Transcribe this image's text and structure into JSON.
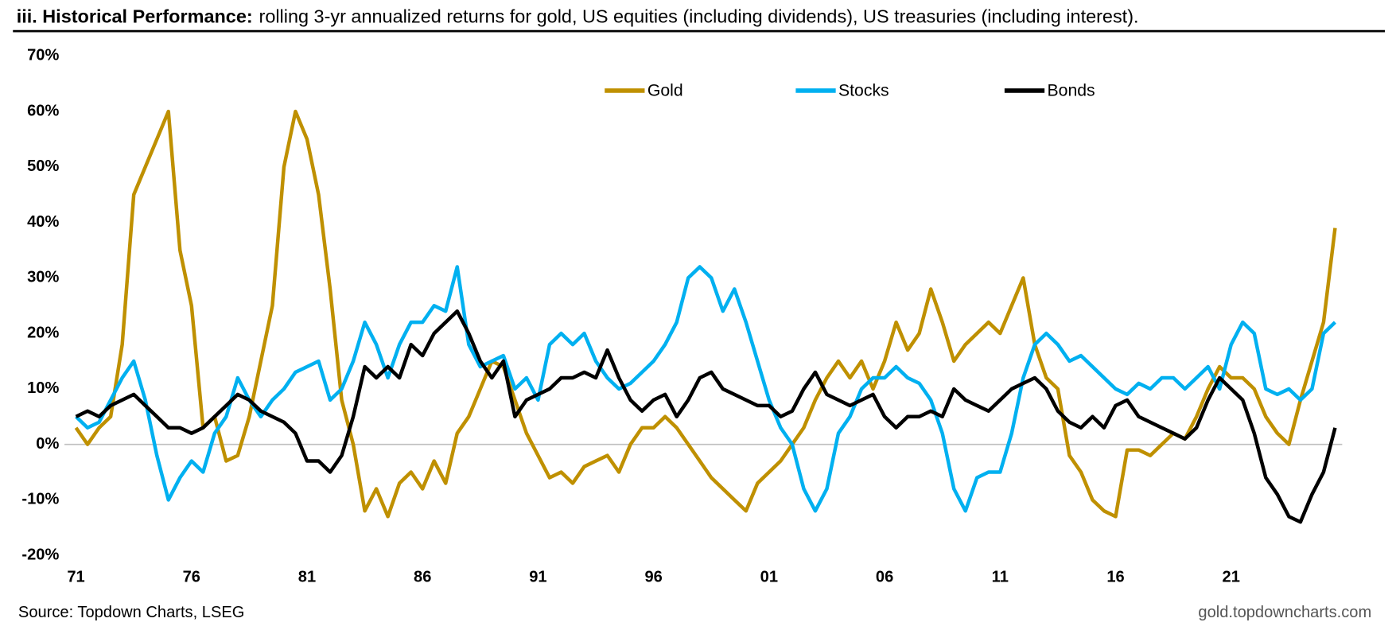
{
  "chart_data": {
    "type": "line",
    "title": "iii. Historical Performance:",
    "subtitle": "rolling 3-yr annualized returns for gold, US equities (including dividends), US treasuries (including interest).",
    "source": "Source: Topdown Charts, LSEG",
    "credit": "gold.topdowncharts.com",
    "x": [
      1971,
      1971.5,
      1972,
      1972.5,
      1973,
      1973.5,
      1974,
      1974.5,
      1975,
      1975.5,
      1976,
      1976.5,
      1977,
      1977.5,
      1978,
      1978.5,
      1979,
      1979.5,
      1980,
      1980.5,
      1981,
      1981.5,
      1982,
      1982.5,
      1983,
      1983.5,
      1984,
      1984.5,
      1985,
      1985.5,
      1986,
      1986.5,
      1987,
      1987.5,
      1988,
      1988.5,
      1989,
      1989.5,
      1990,
      1990.5,
      1991,
      1991.5,
      1992,
      1992.5,
      1993,
      1993.5,
      1994,
      1994.5,
      1995,
      1995.5,
      1996,
      1996.5,
      1997,
      1997.5,
      1998,
      1998.5,
      1999,
      1999.5,
      2000,
      2000.5,
      2001,
      2001.5,
      2002,
      2002.5,
      2003,
      2003.5,
      2004,
      2004.5,
      2005,
      2005.5,
      2006,
      2006.5,
      2007,
      2007.5,
      2008,
      2008.5,
      2009,
      2009.5,
      2010,
      2010.5,
      2011,
      2011.5,
      2012,
      2012.5,
      2013,
      2013.5,
      2014,
      2014.5,
      2015,
      2015.5,
      2016,
      2016.5,
      2017,
      2017.5,
      2018,
      2018.5,
      2019,
      2019.5,
      2020,
      2020.5,
      2021,
      2021.5,
      2022,
      2022.5,
      2023,
      2023.5,
      2024,
      2024.5,
      2025,
      2025.5
    ],
    "series": [
      {
        "name": "Gold",
        "color": "#bf9000",
        "values": [
          3,
          0,
          3,
          5,
          18,
          45,
          50,
          55,
          60,
          35,
          25,
          3,
          5,
          -3,
          -2,
          5,
          15,
          25,
          50,
          60,
          55,
          45,
          28,
          8,
          0,
          -12,
          -8,
          -13,
          -7,
          -5,
          -8,
          -3,
          -7,
          2,
          5,
          10,
          15,
          14,
          8,
          2,
          -2,
          -6,
          -5,
          -7,
          -4,
          -3,
          -2,
          -5,
          0,
          3,
          3,
          5,
          3,
          0,
          -3,
          -6,
          -8,
          -10,
          -12,
          -7,
          -5,
          -3,
          0,
          3,
          8,
          12,
          15,
          12,
          15,
          10,
          15,
          22,
          17,
          20,
          28,
          22,
          15,
          18,
          20,
          22,
          20,
          25,
          30,
          18,
          12,
          10,
          -2,
          -5,
          -10,
          -12,
          -13,
          -1,
          -1,
          -2,
          0,
          2,
          1,
          5,
          10,
          14,
          12,
          12,
          10,
          5,
          2,
          0,
          8,
          15,
          22,
          39
        ]
      },
      {
        "name": "Stocks",
        "color": "#00b0f0",
        "values": [
          5,
          3,
          4,
          8,
          12,
          15,
          8,
          -2,
          -10,
          -6,
          -3,
          -5,
          2,
          5,
          12,
          8,
          5,
          8,
          10,
          13,
          14,
          15,
          8,
          10,
          15,
          22,
          18,
          12,
          18,
          22,
          22,
          25,
          24,
          32,
          18,
          14,
          15,
          16,
          10,
          12,
          8,
          18,
          20,
          18,
          20,
          15,
          12,
          10,
          11,
          13,
          15,
          18,
          22,
          30,
          32,
          30,
          24,
          28,
          22,
          15,
          8,
          3,
          0,
          -8,
          -12,
          -8,
          2,
          5,
          10,
          12,
          12,
          14,
          12,
          11,
          8,
          2,
          -8,
          -12,
          -6,
          -5,
          -5,
          2,
          12,
          18,
          20,
          18,
          15,
          16,
          14,
          12,
          10,
          9,
          11,
          10,
          12,
          12,
          10,
          12,
          14,
          10,
          18,
          22,
          20,
          10,
          9,
          10,
          8,
          10,
          20,
          22
        ]
      },
      {
        "name": "Bonds",
        "color": "#000000",
        "values": [
          5,
          6,
          5,
          7,
          8,
          9,
          7,
          5,
          3,
          3,
          2,
          3,
          5,
          7,
          9,
          8,
          6,
          5,
          4,
          2,
          -3,
          -3,
          -5,
          -2,
          5,
          14,
          12,
          14,
          12,
          18,
          16,
          20,
          22,
          24,
          20,
          15,
          12,
          15,
          5,
          8,
          9,
          10,
          12,
          12,
          13,
          12,
          17,
          12,
          8,
          6,
          8,
          9,
          5,
          8,
          12,
          13,
          10,
          9,
          8,
          7,
          7,
          5,
          6,
          10,
          13,
          9,
          8,
          7,
          8,
          9,
          5,
          3,
          5,
          5,
          6,
          5,
          10,
          8,
          7,
          6,
          8,
          10,
          11,
          12,
          10,
          6,
          4,
          3,
          5,
          3,
          7,
          8,
          5,
          4,
          3,
          2,
          1,
          3,
          8,
          12,
          10,
          8,
          2,
          -6,
          -9,
          -13,
          -14,
          -9,
          -5,
          3
        ]
      }
    ],
    "xlim": [
      1970.5,
      2026.5
    ],
    "xticks": [
      {
        "value": 1971,
        "label": "71"
      },
      {
        "value": 1976,
        "label": "76"
      },
      {
        "value": 1981,
        "label": "81"
      },
      {
        "value": 1986,
        "label": "86"
      },
      {
        "value": 1991,
        "label": "91"
      },
      {
        "value": 1996,
        "label": "96"
      },
      {
        "value": 2001,
        "label": "01"
      },
      {
        "value": 2006,
        "label": "06"
      },
      {
        "value": 2011,
        "label": "11"
      },
      {
        "value": 2016,
        "label": "16"
      },
      {
        "value": 2021,
        "label": "21"
      }
    ],
    "ylim": [
      -20,
      70
    ],
    "yticks": [
      {
        "value": -20,
        "label": "-20%"
      },
      {
        "value": -10,
        "label": "-10%"
      },
      {
        "value": 0,
        "label": "0%"
      },
      {
        "value": 10,
        "label": "10%"
      },
      {
        "value": 20,
        "label": "20%"
      },
      {
        "value": 30,
        "label": "30%"
      },
      {
        "value": 40,
        "label": "40%"
      },
      {
        "value": 50,
        "label": "50%"
      },
      {
        "value": 60,
        "label": "60%"
      },
      {
        "value": 70,
        "label": "70%"
      }
    ],
    "zero_line": true,
    "legend": "top"
  }
}
